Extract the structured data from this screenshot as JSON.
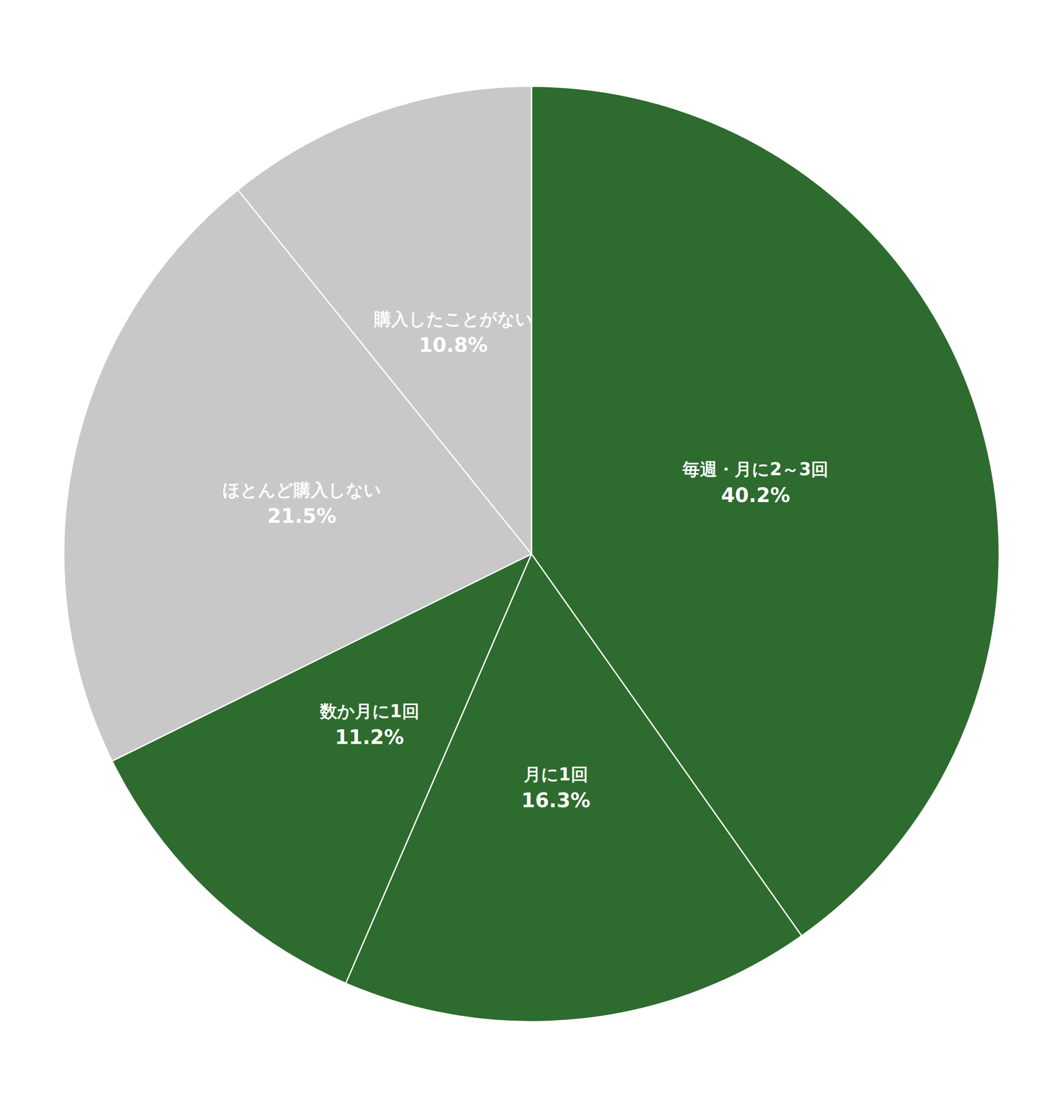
{
  "chart_data": {
    "type": "pie",
    "categories": [
      "毎週・月に2～3回",
      "月に1回",
      "数か月に1回",
      "ほとんど購入しない",
      "購入したことがない"
    ],
    "values": [
      40.2,
      16.3,
      11.2,
      21.5,
      10.8
    ],
    "value_labels": [
      "40.2%",
      "16.3%",
      "11.2%",
      "21.5%",
      "10.8%"
    ],
    "colors": [
      "#2e6b2e",
      "#2e6b2e",
      "#2e6b2e",
      "#c8c8c8",
      "#c8c8c8"
    ],
    "data_labels": true
  }
}
